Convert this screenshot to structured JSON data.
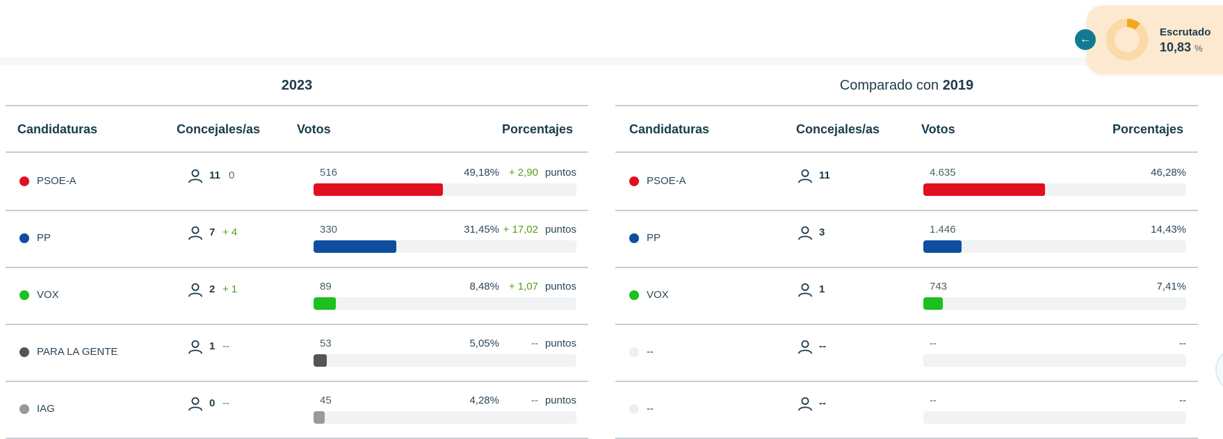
{
  "escrutado": {
    "label": "Escrutado",
    "value": "10,83",
    "unit": "%",
    "fraction": 0.1083
  },
  "left": {
    "title_prefix": "",
    "title_year": "2023",
    "headers": {
      "candidaturas": "Candidaturas",
      "concejales": "Concejales/as",
      "votos": "Votos",
      "porcentajes": "Porcentajes"
    },
    "rows": [
      {
        "party": "PSOE-A",
        "color": "#e01020",
        "seats": "11",
        "seat_diff": "0",
        "seat_diff_positive": false,
        "votes": "516",
        "pct": "49,18%",
        "pt_diff": "+ 2,90",
        "pt_diff_positive": true,
        "puntos": "puntos",
        "bar_pct": 49.18
      },
      {
        "party": "PP",
        "color": "#0d4f9e",
        "seats": "7",
        "seat_diff": "+ 4",
        "seat_diff_positive": true,
        "votes": "330",
        "pct": "31,45%",
        "pt_diff": "+ 17,02",
        "pt_diff_positive": true,
        "puntos": "puntos",
        "bar_pct": 31.45
      },
      {
        "party": "VOX",
        "color": "#1cc020",
        "seats": "2",
        "seat_diff": "+ 1",
        "seat_diff_positive": true,
        "votes": "89",
        "pct": "8,48%",
        "pt_diff": "+ 1,07",
        "pt_diff_positive": true,
        "puntos": "puntos",
        "bar_pct": 8.48
      },
      {
        "party": "PARA LA GENTE",
        "color": "#555555",
        "seats": "1",
        "seat_diff": "--",
        "seat_diff_positive": false,
        "votes": "53",
        "pct": "5,05%",
        "pt_diff": "--",
        "pt_diff_positive": false,
        "puntos": "puntos",
        "bar_pct": 5.05
      },
      {
        "party": "IAG",
        "color": "#999999",
        "seats": "0",
        "seat_diff": "--",
        "seat_diff_positive": false,
        "votes": "45",
        "pct": "4,28%",
        "pt_diff": "--",
        "pt_diff_positive": false,
        "puntos": "puntos",
        "bar_pct": 4.28
      }
    ]
  },
  "right": {
    "title_prefix": "Comparado con ",
    "title_year": "2019",
    "headers": {
      "candidaturas": "Candidaturas",
      "concejales": "Concejales/as",
      "votos": "Votos",
      "porcentajes": "Porcentajes"
    },
    "rows": [
      {
        "party": "PSOE-A",
        "color": "#e01020",
        "seats": "11",
        "votes": "4.635",
        "pct": "46,28%",
        "bar_pct": 46.28
      },
      {
        "party": "PP",
        "color": "#0d4f9e",
        "seats": "3",
        "votes": "1.446",
        "pct": "14,43%",
        "bar_pct": 14.43
      },
      {
        "party": "VOX",
        "color": "#1cc020",
        "seats": "1",
        "votes": "743",
        "pct": "7,41%",
        "bar_pct": 7.41
      },
      {
        "party": "--",
        "color": "#eeeeee",
        "seats": "--",
        "votes": "--",
        "pct": "--",
        "bar_pct": 0
      },
      {
        "party": "--",
        "color": "#eeeeee",
        "seats": "--",
        "votes": "--",
        "pct": "--",
        "bar_pct": 0
      }
    ]
  }
}
